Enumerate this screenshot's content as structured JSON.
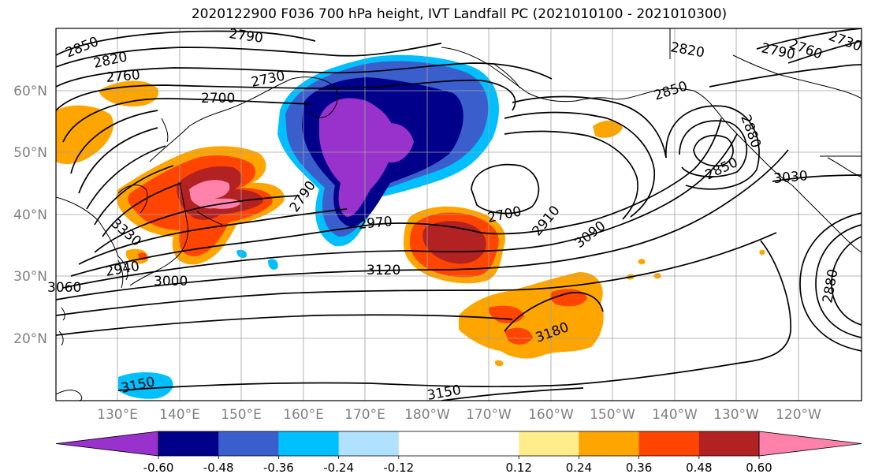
{
  "title": "2020122900 F036 700 hPa height, IVT Landfall PC (2021010100 - 2021010300)",
  "lon_ticks": [
    "130°E",
    "140°E",
    "150°E",
    "160°E",
    "170°E",
    "180°W",
    "170°W",
    "160°W",
    "150°W",
    "140°W",
    "130°W",
    "120°W"
  ],
  "lat_ticks": [
    "60°N",
    "50°N",
    "40°N",
    "30°N",
    "20°N"
  ],
  "colorbar": {
    "colors": [
      "#9932CC",
      "#00008B",
      "#3A5FCD",
      "#00BFFF",
      "#B0E2FF",
      "#FFFFFF",
      "#FFFFFF",
      "#FFEC8B",
      "#FFA500",
      "#FF4500",
      "#B22222",
      "#FF82AB"
    ],
    "tick_labels": [
      "-0.60",
      "-0.48",
      "-0.36",
      "-0.24",
      "-0.12",
      "0.12",
      "0.24",
      "0.36",
      "0.48",
      "0.60"
    ]
  },
  "contour_labels": [
    "2850",
    "2820",
    "2790",
    "2760",
    "2730",
    "2700",
    "2820",
    "2790",
    "2760",
    "2730",
    "2850",
    "2880",
    "2850",
    "3030",
    "2790",
    "2970",
    "2700",
    "2910",
    "3090",
    "3120",
    "3000",
    "2940",
    "3180",
    "3150",
    "3150",
    "3060",
    "2880",
    "3330"
  ]
}
